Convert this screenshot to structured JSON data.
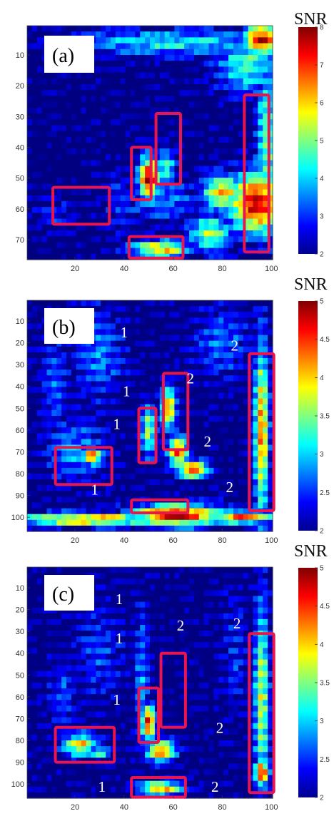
{
  "chart_data": [
    {
      "type": "heatmap",
      "panel_label": "(a)",
      "colorbar_title": "SNR",
      "colorbar_range": [
        2,
        8
      ],
      "colorbar_ticks": [
        2,
        3,
        4,
        5,
        6,
        7,
        8
      ],
      "colormap": "jet",
      "x_ticks": [
        20,
        40,
        60,
        80,
        100
      ],
      "y_ticks": [
        10,
        20,
        30,
        40,
        50,
        60,
        70
      ],
      "x_range": [
        1,
        100
      ],
      "y_range": [
        1,
        76
      ],
      "base_level": 2.2,
      "blobs": [
        {
          "x": 96,
          "y": 5,
          "rx": 7,
          "ry": 5,
          "v": 8
        },
        {
          "x": 60,
          "y": 6,
          "rx": 45,
          "ry": 4,
          "v": 4.6
        },
        {
          "x": 90,
          "y": 13,
          "rx": 12,
          "ry": 9,
          "v": 5.0
        },
        {
          "x": 98,
          "y": 40,
          "rx": 4,
          "ry": 30,
          "v": 5.2
        },
        {
          "x": 94,
          "y": 58,
          "rx": 11,
          "ry": 10,
          "v": 8
        },
        {
          "x": 80,
          "y": 55,
          "rx": 8,
          "ry": 6,
          "v": 6.5
        },
        {
          "x": 75,
          "y": 68,
          "rx": 8,
          "ry": 6,
          "v": 5.6
        },
        {
          "x": 50,
          "y": 50,
          "rx": 4,
          "ry": 7,
          "v": 8
        },
        {
          "x": 57,
          "y": 47,
          "rx": 4,
          "ry": 6,
          "v": 5.0
        },
        {
          "x": 55,
          "y": 57,
          "rx": 16,
          "ry": 7,
          "v": 3.8
        },
        {
          "x": 55,
          "y": 73,
          "rx": 12,
          "ry": 3,
          "v": 6.5
        },
        {
          "x": 40,
          "y": 58,
          "rx": 10,
          "ry": 10,
          "v": 3.2
        },
        {
          "x": 12,
          "y": 62,
          "rx": 8,
          "ry": 5,
          "v": 3.2
        }
      ],
      "boxes": [
        {
          "x0": 11,
          "x1": 34,
          "y0": 53,
          "y1": 65
        },
        {
          "x0": 43,
          "x1": 51,
          "y0": 40,
          "y1": 57
        },
        {
          "x0": 53,
          "x1": 63,
          "y0": 29,
          "y1": 52
        },
        {
          "x0": 42,
          "x1": 64,
          "y0": 69,
          "y1": 76
        },
        {
          "x0": 89,
          "x1": 99,
          "y0": 23,
          "y1": 74
        }
      ],
      "zone_labels": []
    },
    {
      "type": "heatmap",
      "panel_label": "(b)",
      "colorbar_title": "SNR",
      "colorbar_range": [
        2,
        5
      ],
      "colorbar_ticks": [
        2,
        2.5,
        3,
        3.5,
        4,
        4.5,
        5
      ],
      "colormap": "jet",
      "x_ticks": [
        20,
        40,
        60,
        80,
        100
      ],
      "y_ticks": [
        10,
        20,
        30,
        40,
        50,
        60,
        70,
        80,
        90,
        100
      ],
      "x_range": [
        1,
        100
      ],
      "y_range": [
        1,
        106
      ],
      "base_level": 2.1,
      "blobs": [
        {
          "x": 30,
          "y": 25,
          "rx": 10,
          "ry": 22,
          "v": 2.9
        },
        {
          "x": 12,
          "y": 40,
          "rx": 6,
          "ry": 25,
          "v": 2.8
        },
        {
          "x": 80,
          "y": 20,
          "rx": 12,
          "ry": 18,
          "v": 2.8
        },
        {
          "x": 20,
          "y": 70,
          "rx": 12,
          "ry": 15,
          "v": 3.0
        },
        {
          "x": 27,
          "y": 72,
          "rx": 4,
          "ry": 4,
          "v": 4.6
        },
        {
          "x": 58,
          "y": 50,
          "rx": 3,
          "ry": 10,
          "v": 4.4
        },
        {
          "x": 62,
          "y": 70,
          "rx": 4,
          "ry": 8,
          "v": 4.5
        },
        {
          "x": 68,
          "y": 78,
          "rx": 6,
          "ry": 4,
          "v": 4.8
        },
        {
          "x": 50,
          "y": 60,
          "rx": 3,
          "ry": 12,
          "v": 3.8
        },
        {
          "x": 96,
          "y": 60,
          "rx": 3,
          "ry": 40,
          "v": 4.4
        },
        {
          "x": 25,
          "y": 101,
          "rx": 30,
          "ry": 3,
          "v": 4.4
        },
        {
          "x": 62,
          "y": 99,
          "rx": 18,
          "ry": 5,
          "v": 5.0
        },
        {
          "x": 88,
          "y": 100,
          "rx": 12,
          "ry": 3,
          "v": 4.6
        }
      ],
      "boxes": [
        {
          "x0": 12,
          "x1": 35,
          "y0": 68,
          "y1": 85
        },
        {
          "x0": 46,
          "x1": 53,
          "y0": 50,
          "y1": 75
        },
        {
          "x0": 56,
          "x1": 66,
          "y0": 34,
          "y1": 69
        },
        {
          "x0": 43,
          "x1": 66,
          "y0": 92,
          "y1": 98
        },
        {
          "x0": 91,
          "x1": 101,
          "y0": 25,
          "y1": 97
        }
      ],
      "zone_labels": [
        {
          "text": "1",
          "x": 40,
          "y": 16
        },
        {
          "text": "1",
          "x": 41,
          "y": 43
        },
        {
          "text": "1",
          "x": 37,
          "y": 58
        },
        {
          "text": "1",
          "x": 28,
          "y": 88
        },
        {
          "text": "2",
          "x": 85,
          "y": 22
        },
        {
          "text": "2",
          "x": 67,
          "y": 37
        },
        {
          "text": "2",
          "x": 74,
          "y": 66
        },
        {
          "text": "2",
          "x": 83,
          "y": 87
        }
      ]
    },
    {
      "type": "heatmap",
      "panel_label": "(c)",
      "colorbar_title": "SNR",
      "colorbar_range": [
        2,
        5
      ],
      "colorbar_ticks": [
        2,
        2.5,
        3,
        3.5,
        4,
        4.5,
        5
      ],
      "colormap": "jet",
      "x_ticks": [
        20,
        40,
        60,
        80,
        100
      ],
      "y_ticks": [
        10,
        20,
        30,
        40,
        50,
        60,
        70,
        80,
        90,
        100
      ],
      "x_range": [
        1,
        100
      ],
      "y_range": [
        1,
        106
      ],
      "base_level": 2.1,
      "blobs": [
        {
          "x": 30,
          "y": 40,
          "rx": 10,
          "ry": 22,
          "v": 2.7
        },
        {
          "x": 15,
          "y": 60,
          "rx": 6,
          "ry": 20,
          "v": 2.7
        },
        {
          "x": 22,
          "y": 82,
          "rx": 7,
          "ry": 5,
          "v": 4.2
        },
        {
          "x": 30,
          "y": 86,
          "rx": 4,
          "ry": 3,
          "v": 3.6
        },
        {
          "x": 50,
          "y": 72,
          "rx": 3,
          "ry": 8,
          "v": 4.8
        },
        {
          "x": 55,
          "y": 85,
          "rx": 6,
          "ry": 5,
          "v": 4.5
        },
        {
          "x": 47,
          "y": 50,
          "rx": 3,
          "ry": 30,
          "v": 3.0
        },
        {
          "x": 96,
          "y": 60,
          "rx": 3,
          "ry": 45,
          "v": 3.9
        },
        {
          "x": 96,
          "y": 95,
          "rx": 3,
          "ry": 6,
          "v": 4.8
        },
        {
          "x": 55,
          "y": 102,
          "rx": 9,
          "ry": 3,
          "v": 4.4
        },
        {
          "x": 85,
          "y": 40,
          "rx": 5,
          "ry": 30,
          "v": 2.6
        }
      ],
      "boxes": [
        {
          "x0": 12,
          "x1": 36,
          "y0": 74,
          "y1": 90
        },
        {
          "x0": 46,
          "x1": 54,
          "y0": 56,
          "y1": 81
        },
        {
          "x0": 55,
          "x1": 65,
          "y0": 40,
          "y1": 74
        },
        {
          "x0": 43,
          "x1": 65,
          "y0": 97,
          "y1": 106
        },
        {
          "x0": 91,
          "x1": 101,
          "y0": 31,
          "y1": 104
        }
      ],
      "zone_labels": [
        {
          "text": "1",
          "x": 38,
          "y": 16
        },
        {
          "text": "1",
          "x": 38,
          "y": 34
        },
        {
          "text": "1",
          "x": 37,
          "y": 62
        },
        {
          "text": "1",
          "x": 31,
          "y": 102
        },
        {
          "text": "2",
          "x": 63,
          "y": 28
        },
        {
          "text": "2",
          "x": 86,
          "y": 27
        },
        {
          "text": "2",
          "x": 79,
          "y": 75
        },
        {
          "text": "2",
          "x": 77,
          "y": 102
        }
      ]
    }
  ]
}
